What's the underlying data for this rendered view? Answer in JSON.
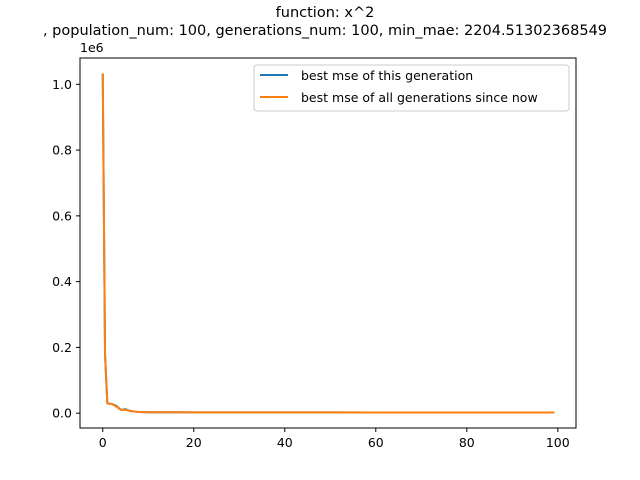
{
  "chart_data": {
    "type": "line",
    "title": "function:  x^2",
    "subtitle": ", population_num: 100, generations_num: 100, min_mae: 2204.51302368549",
    "xlabel": "",
    "ylabel": "",
    "y_offset_label": "1e6",
    "xlim": [
      -5,
      104
    ],
    "ylim": [
      -45000,
      1080000
    ],
    "x_ticks": [
      0,
      20,
      40,
      60,
      80,
      100
    ],
    "x_tick_labels": [
      "0",
      "20",
      "40",
      "60",
      "80",
      "100"
    ],
    "y_ticks": [
      0,
      200000,
      400000,
      600000,
      800000,
      1000000
    ],
    "y_tick_labels": [
      "0.0",
      "0.2",
      "0.4",
      "0.6",
      "0.8",
      "1.0"
    ],
    "grid": false,
    "legend_position": "top-right",
    "x": [
      0,
      0.5,
      1,
      2,
      3,
      4,
      5,
      6,
      7,
      8,
      9,
      10,
      15,
      20,
      30,
      40,
      50,
      60,
      70,
      80,
      90,
      99
    ],
    "series": [
      {
        "name": "best mse of this generation",
        "color": "#1f77b4",
        "values": [
          1030000,
          180000,
          30000,
          28000,
          22000,
          10000,
          12000,
          7000,
          5000,
          3500,
          3200,
          3000,
          2800,
          2600,
          2500,
          2400,
          2350,
          2300,
          2250,
          2220,
          2210,
          2204.51
        ]
      },
      {
        "name": "best mse of all generations since now",
        "color": "#ff7f0e",
        "values": [
          1030000,
          180000,
          30000,
          28000,
          20000,
          10000,
          10000,
          7000,
          5000,
          3500,
          3200,
          3000,
          2800,
          2600,
          2500,
          2400,
          2350,
          2300,
          2250,
          2220,
          2210,
          2204.51
        ]
      }
    ]
  }
}
